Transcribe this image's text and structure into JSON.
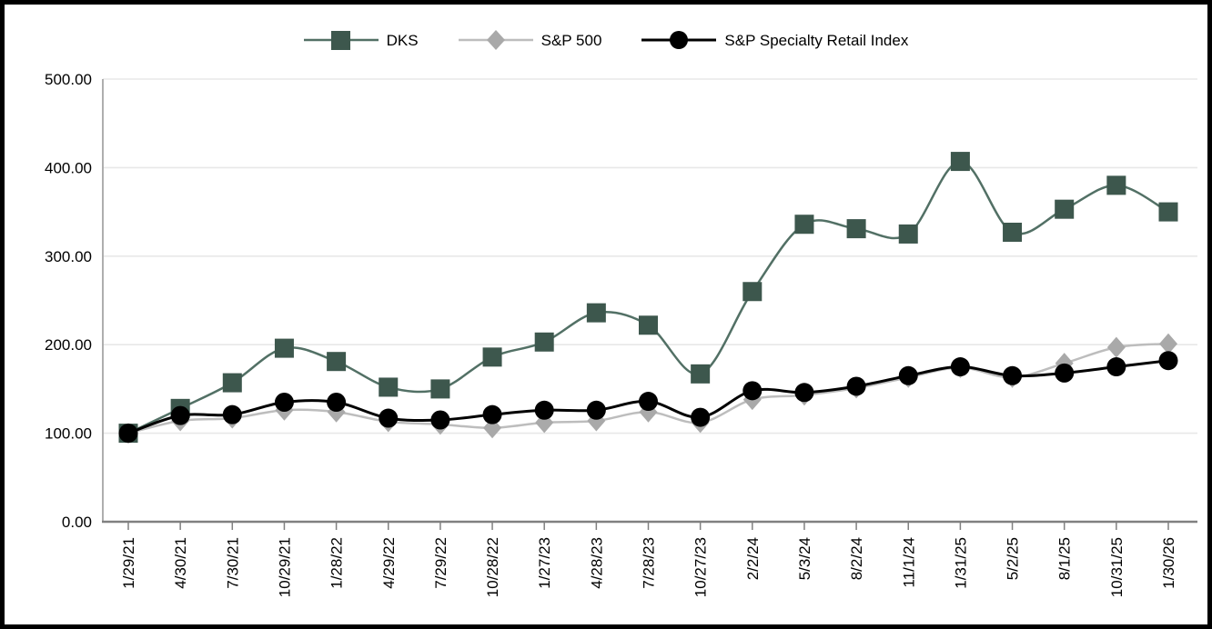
{
  "chart_data": {
    "type": "line",
    "title": "",
    "xlabel": "",
    "ylabel": "",
    "x_labels": [
      "1/29/21",
      "4/30/21",
      "7/30/21",
      "10/29/21",
      "1/28/22",
      "4/29/22",
      "7/29/22",
      "10/28/22",
      "1/27/23",
      "4/28/23",
      "7/28/23",
      "10/27/23",
      "2/2/24",
      "5/3/24",
      "8/2/24",
      "11/1/24",
      "1/31/25",
      "5/2/25",
      "8/1/25",
      "10/31/25",
      "1/30/26"
    ],
    "series": [
      {
        "name": "DKS",
        "marker": "square",
        "line_color": "#527065",
        "marker_color": "#3d574d",
        "line_width": 2.5,
        "values": [
          100,
          128,
          157,
          196,
          181,
          152,
          150,
          186,
          203,
          236,
          222,
          167,
          260,
          336,
          331,
          325,
          407,
          327,
          353,
          380,
          350
        ]
      },
      {
        "name": "S&P 500",
        "marker": "diamond",
        "line_color": "#bdbdbd",
        "marker_color": "#a9a9a9",
        "line_width": 2.5,
        "values": [
          100,
          114,
          117,
          126,
          124,
          113,
          110,
          106,
          112,
          114,
          124,
          112,
          138,
          143,
          151,
          163,
          174,
          163,
          179,
          197,
          201
        ]
      },
      {
        "name": "S&P Specialty Retail Index",
        "marker": "circle",
        "line_color": "#000000",
        "marker_color": "#000000",
        "line_width": 3,
        "values": [
          100,
          120,
          121,
          135,
          135,
          117,
          115,
          121,
          126,
          126,
          136,
          118,
          148,
          146,
          153,
          165,
          175,
          165,
          168,
          175,
          182
        ]
      }
    ],
    "ylim": [
      0,
      500
    ],
    "ytick_step": 100,
    "ytick_labels": [
      "0.00",
      "100.00",
      "200.00",
      "300.00",
      "400.00",
      "500.00"
    ],
    "grid": "horizontal-only",
    "legend_position": "top-center",
    "smooth_lines": true,
    "style": {
      "grid_color": "#e8e8e8",
      "axis_left_color": "#a6a6a6",
      "axis_bottom_color": "#808080",
      "label_color": "#000000",
      "label_font_size": 17,
      "background": "#ffffff",
      "frame_border_color": "#000000"
    }
  }
}
